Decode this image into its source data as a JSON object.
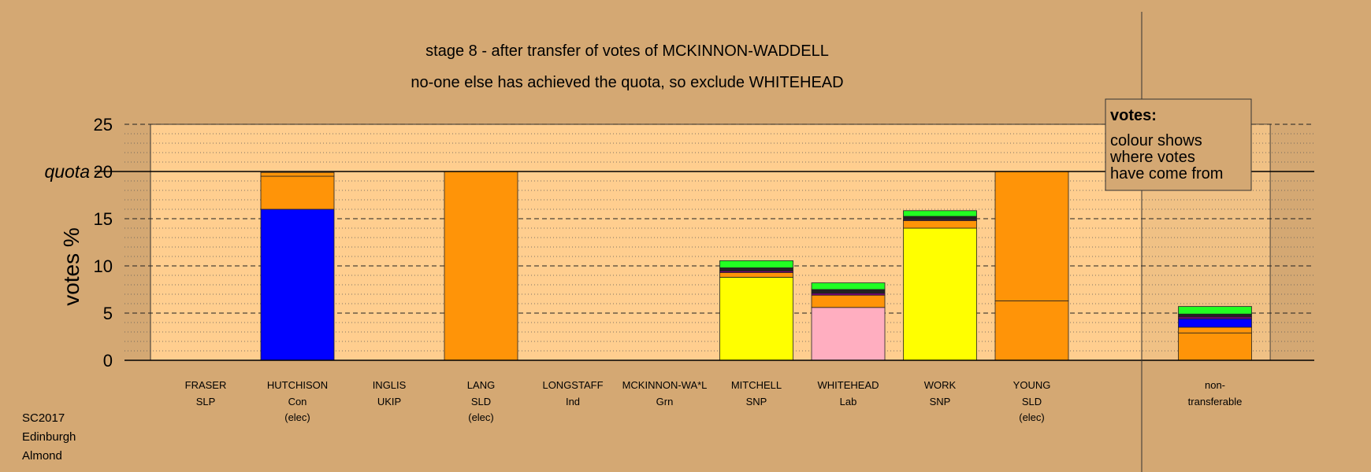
{
  "chart_data": {
    "type": "bar",
    "stacked": true,
    "title": "stage 8 - after transfer of votes of MCKINNON-WADDELL",
    "subtitle": "no-one else has achieved the quota, so exclude WHITEHEAD",
    "ylabel": "votes %",
    "quota_label": "quota",
    "quota": 20,
    "ylim": [
      0,
      25
    ],
    "yticks": [
      0,
      5,
      10,
      15,
      20,
      25
    ],
    "grid": true,
    "legend_title": "votes:",
    "legend_text": [
      "colour shows",
      "where votes",
      "have come from"
    ],
    "legend_position": "top-right",
    "footer": [
      "SC2017",
      "Edinburgh",
      "Almond"
    ],
    "colors": {
      "Con": "#0000ff",
      "SLD": "#ff9408",
      "SNP": "#ffff00",
      "Lab": "#ffaec0",
      "Grn": "#22ff22",
      "Ind": "#222222",
      "UKIP": "#800080",
      "SLP": "#000000",
      "plot_bg": "#ffce8f",
      "page_bg": "#d4a873"
    },
    "candidates": [
      {
        "name": "FRASER",
        "party": "SLP",
        "status": "",
        "segments": []
      },
      {
        "name": "HUTCHISON",
        "party": "Con",
        "status": "(elec)",
        "segments": [
          {
            "from": "Con",
            "value": 16.0
          },
          {
            "from": "SLD",
            "value": 3.5
          },
          {
            "from": "SLD",
            "value": 0.4
          }
        ]
      },
      {
        "name": "INGLIS",
        "party": "UKIP",
        "status": "",
        "segments": []
      },
      {
        "name": "LANG",
        "party": "SLD",
        "status": "(elec)",
        "segments": [
          {
            "from": "SLD",
            "value": 20.0
          }
        ]
      },
      {
        "name": "LONGSTAFF",
        "party": "Ind",
        "status": "",
        "segments": []
      },
      {
        "name": "MCKINNON-WA*L",
        "party": "Grn",
        "status": "",
        "segments": []
      },
      {
        "name": "MITCHELL",
        "party": "SNP",
        "status": "",
        "segments": [
          {
            "from": "SNP",
            "value": 8.8
          },
          {
            "from": "SLD",
            "value": 0.5
          },
          {
            "from": "UKIP",
            "value": 0.15
          },
          {
            "from": "Ind",
            "value": 0.35
          },
          {
            "from": "Grn",
            "value": 0.75
          }
        ]
      },
      {
        "name": "WHITEHEAD",
        "party": "Lab",
        "status": "",
        "segments": [
          {
            "from": "Lab",
            "value": 5.6
          },
          {
            "from": "SLD",
            "value": 1.3
          },
          {
            "from": "UKIP",
            "value": 0.2
          },
          {
            "from": "Ind",
            "value": 0.4
          },
          {
            "from": "Grn",
            "value": 0.7
          }
        ]
      },
      {
        "name": "WORK",
        "party": "SNP",
        "status": "",
        "segments": [
          {
            "from": "SNP",
            "value": 14.0
          },
          {
            "from": "SLD",
            "value": 0.8
          },
          {
            "from": "UKIP",
            "value": 0.1
          },
          {
            "from": "Ind",
            "value": 0.35
          },
          {
            "from": "Grn",
            "value": 0.6
          }
        ]
      },
      {
        "name": "YOUNG",
        "party": "SLD",
        "status": "(elec)",
        "segments": [
          {
            "from": "SLD",
            "value": 6.3
          },
          {
            "from": "SLD",
            "value": 13.7
          }
        ]
      }
    ],
    "nontransferable": {
      "label_line1": "non-",
      "label_line2": "transferable",
      "segments": [
        {
          "from": "SLD",
          "value": 2.9
        },
        {
          "from": "SLD",
          "value": 0.6
        },
        {
          "from": "Con",
          "value": 0.9
        },
        {
          "from": "UKIP",
          "value": 0.2
        },
        {
          "from": "Ind",
          "value": 0.3
        },
        {
          "from": "Grn",
          "value": 0.8
        }
      ]
    }
  }
}
